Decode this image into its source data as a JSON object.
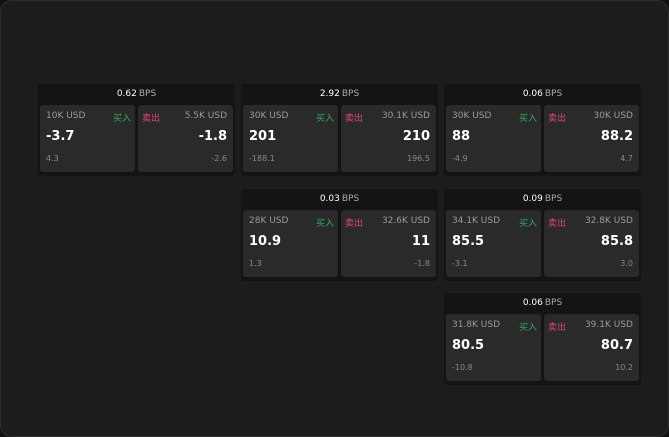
{
  "colors": {
    "buy": "#2fae5a",
    "sell": "#e0476e"
  },
  "buy_label": "买入",
  "sell_label": "卖出",
  "unit": "BPS",
  "widgets": [
    {
      "spread": "0.62",
      "bid": {
        "size": "10K USD",
        "price": "-3.7",
        "change": "4.3"
      },
      "ask": {
        "size": "5.5K USD",
        "price": "-1.8",
        "change": "-2.6"
      }
    },
    {
      "spread": "2.92",
      "bid": {
        "size": "30K USD",
        "price": "201",
        "change": "-188.1"
      },
      "ask": {
        "size": "30.1K USD",
        "price": "210",
        "change": "196.5"
      }
    },
    {
      "spread": "0.06",
      "bid": {
        "size": "30K USD",
        "price": "88",
        "change": "-4.9"
      },
      "ask": {
        "size": "30K USD",
        "price": "88.2",
        "change": "4.7"
      }
    },
    {
      "spread": "0.03",
      "bid": {
        "size": "28K USD",
        "price": "10.9",
        "change": "1.3"
      },
      "ask": {
        "size": "32.6K USD",
        "price": "11",
        "change": "-1.8"
      }
    },
    {
      "spread": "0.09",
      "bid": {
        "size": "34.1K USD",
        "price": "85.5",
        "change": "-3.1"
      },
      "ask": {
        "size": "32.8K USD",
        "price": "85.8",
        "change": "3.0"
      }
    },
    {
      "spread": "0.06",
      "bid": {
        "size": "31.8K USD",
        "price": "80.5",
        "change": "-10.8"
      },
      "ask": {
        "size": "39.1K USD",
        "price": "80.7",
        "change": "10.2"
      }
    }
  ]
}
